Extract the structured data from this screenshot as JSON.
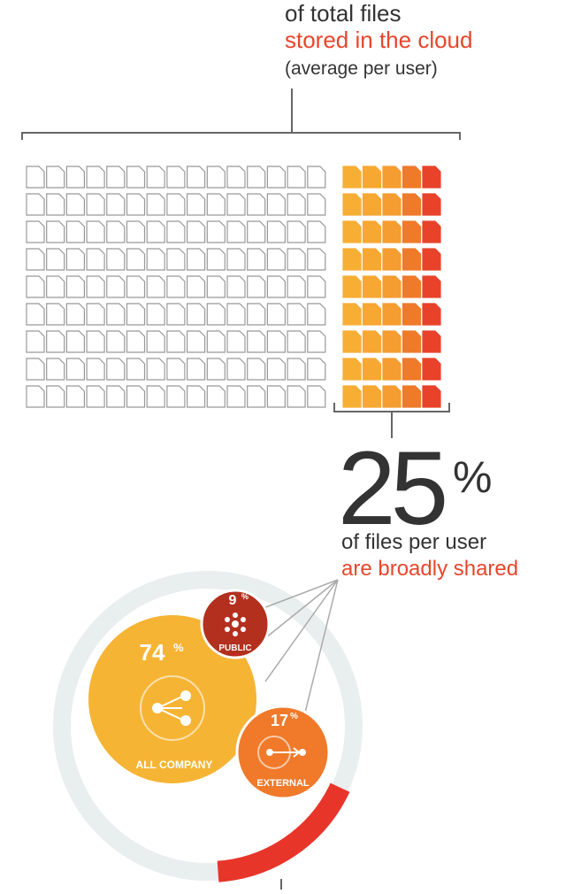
{
  "header": {
    "line1": "of total files",
    "line2": "stored in the cloud",
    "line3": "(average per user)"
  },
  "stat": {
    "number": "25",
    "unit": "%",
    "line1": "of files per user",
    "line2": "are broadly shared"
  },
  "segments": [
    {
      "value": "74",
      "unit": "%",
      "label": "ALL COMPANY"
    },
    {
      "value": "9",
      "unit": "%",
      "label": "PUBLIC"
    },
    {
      "value": "17",
      "unit": "%",
      "label": "EXTERNAL"
    }
  ]
}
